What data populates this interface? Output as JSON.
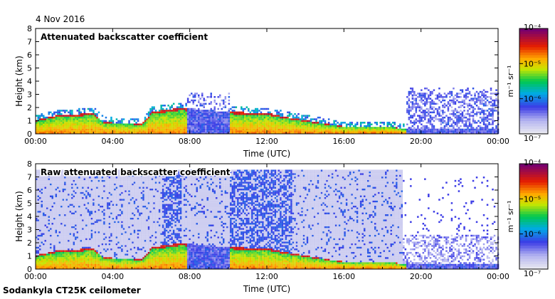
{
  "date_label": "4 Nov 2016",
  "footer_label": "Sodankyla CT25K ceilometer",
  "chart_data": [
    {
      "type": "heatmap",
      "title": "Attenuated backscatter coefficient",
      "xlabel": "Time (UTC)",
      "ylabel": "Height (km)",
      "xlim": [
        0,
        24
      ],
      "ylim": [
        0,
        8
      ],
      "x_ticks": [
        "00:00",
        "04:00",
        "08:00",
        "12:00",
        "16:00",
        "20:00",
        "00:00"
      ],
      "y_ticks": [
        "0",
        "1",
        "2",
        "3",
        "4",
        "5",
        "6",
        "7",
        "8"
      ],
      "colorbar": {
        "label": "m⁻¹ sr⁻¹",
        "ticks": [
          "10⁻⁷",
          "10⁻⁶",
          "10⁻⁵",
          "10⁻⁴"
        ],
        "range_log10": [
          -7,
          -4
        ]
      },
      "features": {
        "boundary_layer_top_km": [
          {
            "t": 0,
            "h": 1.0
          },
          {
            "t": 1,
            "h": 1.3
          },
          {
            "t": 3,
            "h": 1.5
          },
          {
            "t": 3.5,
            "h": 0.8
          },
          {
            "t": 5.5,
            "h": 0.7
          },
          {
            "t": 6,
            "h": 1.6
          },
          {
            "t": 7.5,
            "h": 1.9
          },
          {
            "t": 10,
            "h": 1.6
          },
          {
            "t": 12,
            "h": 1.5
          },
          {
            "t": 13,
            "h": 1.2
          },
          {
            "t": 15,
            "h": 0.7
          },
          {
            "t": 16,
            "h": 0.5
          },
          {
            "t": 18.5,
            "h": 0.5
          },
          {
            "t": 19,
            "h": 0.3
          }
        ],
        "gaps_hours": [
          [
            7.8,
            10
          ],
          [
            19.2,
            24
          ]
        ]
      }
    },
    {
      "type": "heatmap",
      "title": "Raw attenuated backscatter coefficient",
      "xlabel": "Time (UTC)",
      "ylabel": "Height (km)",
      "xlim": [
        0,
        24
      ],
      "ylim": [
        0,
        8
      ],
      "x_ticks": [
        "00:00",
        "04:00",
        "08:00",
        "12:00",
        "16:00",
        "20:00",
        "00:00"
      ],
      "y_ticks": [
        "0",
        "1",
        "2",
        "3",
        "4",
        "5",
        "6",
        "7",
        "8"
      ],
      "colorbar": {
        "label": "m⁻¹ sr⁻¹",
        "ticks": [
          "10⁻⁷",
          "10⁻⁶",
          "10⁻⁵",
          "10⁻⁴"
        ],
        "range_log10": [
          -7,
          -4
        ]
      },
      "features": {
        "noise_top_km": 7.5,
        "dense_noise_hours": [
          [
            6.5,
            7.5
          ],
          [
            10,
            13.3
          ]
        ],
        "clear_sky_hours": [
          19,
          24
        ]
      }
    }
  ]
}
